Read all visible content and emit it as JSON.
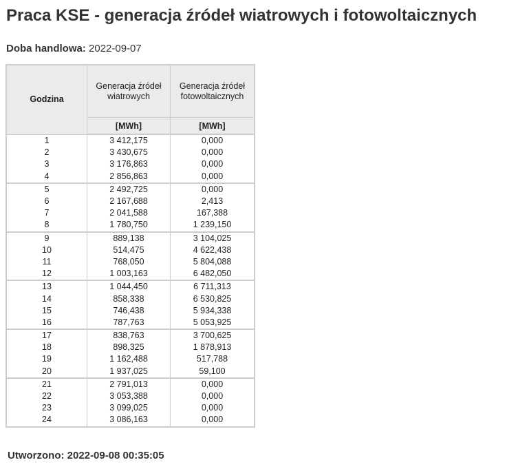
{
  "page": {
    "title": "Praca KSE - generacja źródeł wiatrowych i fotowoltaicznych",
    "trading_day_label": "Doba handlowa:",
    "trading_day_value": "2022-09-07",
    "created_label": "Utworzono:",
    "created_value": "2022-09-08 00:35:05"
  },
  "table": {
    "headers": {
      "hour": "Godzina",
      "wind": "Generacja źródeł wiatrowych",
      "solar": "Generacja źródeł fotowoltaicznych",
      "unit_wind": "[MWh]",
      "unit_solar": "[MWh]"
    },
    "rows": [
      {
        "hour": "1",
        "wind": "3 412,175",
        "solar": "0,000"
      },
      {
        "hour": "2",
        "wind": "3 430,675",
        "solar": "0,000"
      },
      {
        "hour": "3",
        "wind": "3 176,863",
        "solar": "0,000"
      },
      {
        "hour": "4",
        "wind": "2 856,863",
        "solar": "0,000"
      },
      {
        "hour": "5",
        "wind": "2 492,725",
        "solar": "0,000"
      },
      {
        "hour": "6",
        "wind": "2 167,688",
        "solar": "2,413"
      },
      {
        "hour": "7",
        "wind": "2 041,588",
        "solar": "167,388"
      },
      {
        "hour": "8",
        "wind": "1 780,750",
        "solar": "1 239,150"
      },
      {
        "hour": "9",
        "wind": "889,138",
        "solar": "3 104,025"
      },
      {
        "hour": "10",
        "wind": "514,475",
        "solar": "4 622,438"
      },
      {
        "hour": "11",
        "wind": "768,050",
        "solar": "5 804,088"
      },
      {
        "hour": "12",
        "wind": "1 003,163",
        "solar": "6 482,050"
      },
      {
        "hour": "13",
        "wind": "1 044,450",
        "solar": "6 711,313"
      },
      {
        "hour": "14",
        "wind": "858,338",
        "solar": "6 530,825"
      },
      {
        "hour": "15",
        "wind": "746,438",
        "solar": "5 934,338"
      },
      {
        "hour": "16",
        "wind": "787,763",
        "solar": "5 053,925"
      },
      {
        "hour": "17",
        "wind": "838,763",
        "solar": "3 700,625"
      },
      {
        "hour": "18",
        "wind": "898,325",
        "solar": "1 878,913"
      },
      {
        "hour": "19",
        "wind": "1 162,488",
        "solar": "517,788"
      },
      {
        "hour": "20",
        "wind": "1 937,025",
        "solar": "59,100"
      },
      {
        "hour": "21",
        "wind": "2 791,013",
        "solar": "0,000"
      },
      {
        "hour": "22",
        "wind": "3 053,388",
        "solar": "0,000"
      },
      {
        "hour": "23",
        "wind": "3 099,025",
        "solar": "0,000"
      },
      {
        "hour": "24",
        "wind": "3 086,163",
        "solar": "0,000"
      }
    ]
  }
}
